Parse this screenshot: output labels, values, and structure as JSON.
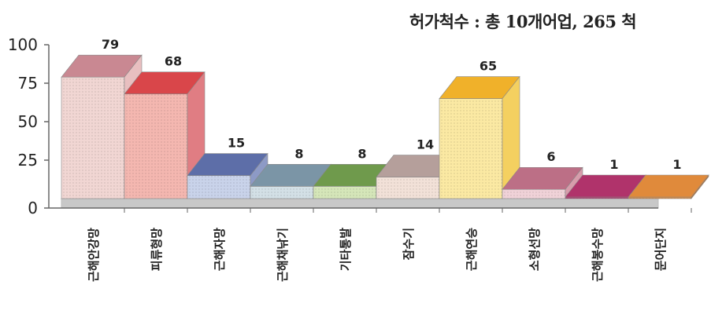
{
  "chart_data": {
    "type": "bar",
    "title": "",
    "xlabel": "",
    "ylabel": "",
    "annotation": "허가척수 : 총 10개어업, 265 척",
    "categories": [
      "근해안강망",
      "피류형망",
      "근해자망",
      "근해채낚기",
      "기타통발",
      "잠수기",
      "근해연승",
      "소형선망",
      "근해봉수망",
      "문어단지"
    ],
    "values": [
      79,
      68,
      15,
      8,
      8,
      14,
      65,
      6,
      1,
      1
    ],
    "ylim": [
      0,
      100
    ],
    "yticks": [
      0,
      25,
      50,
      75,
      100
    ],
    "grid": false,
    "colors": {
      "fronts": [
        "#f1d6d3",
        "#f4b7b0",
        "#c9d3ea",
        "#d3e0e6",
        "#d5e6b9",
        "#f2e1d8",
        "#fbe9a3",
        "#f0d2d8",
        "#b0336b",
        "#e08a3b"
      ],
      "tops": [
        "#c98892",
        "#d9464a",
        "#5d6ea8",
        "#7b95a6",
        "#6f9a4c",
        "#b59f9b",
        "#f0b12a",
        "#bc6f86",
        "#b0336b",
        "#e08a3b"
      ],
      "sides": [
        "#e8bfc0",
        "#e07d83",
        "#8d9ac6",
        "#a8b9c4",
        "#9fbd7a",
        "#d8c5be",
        "#f4d060",
        "#d79cab",
        "#8e2a56",
        "#c06e2a"
      ],
      "floor": "#d9d9d9",
      "floor_edge": "#bdbdbd",
      "axis": "#666666",
      "text": "#222222"
    }
  }
}
